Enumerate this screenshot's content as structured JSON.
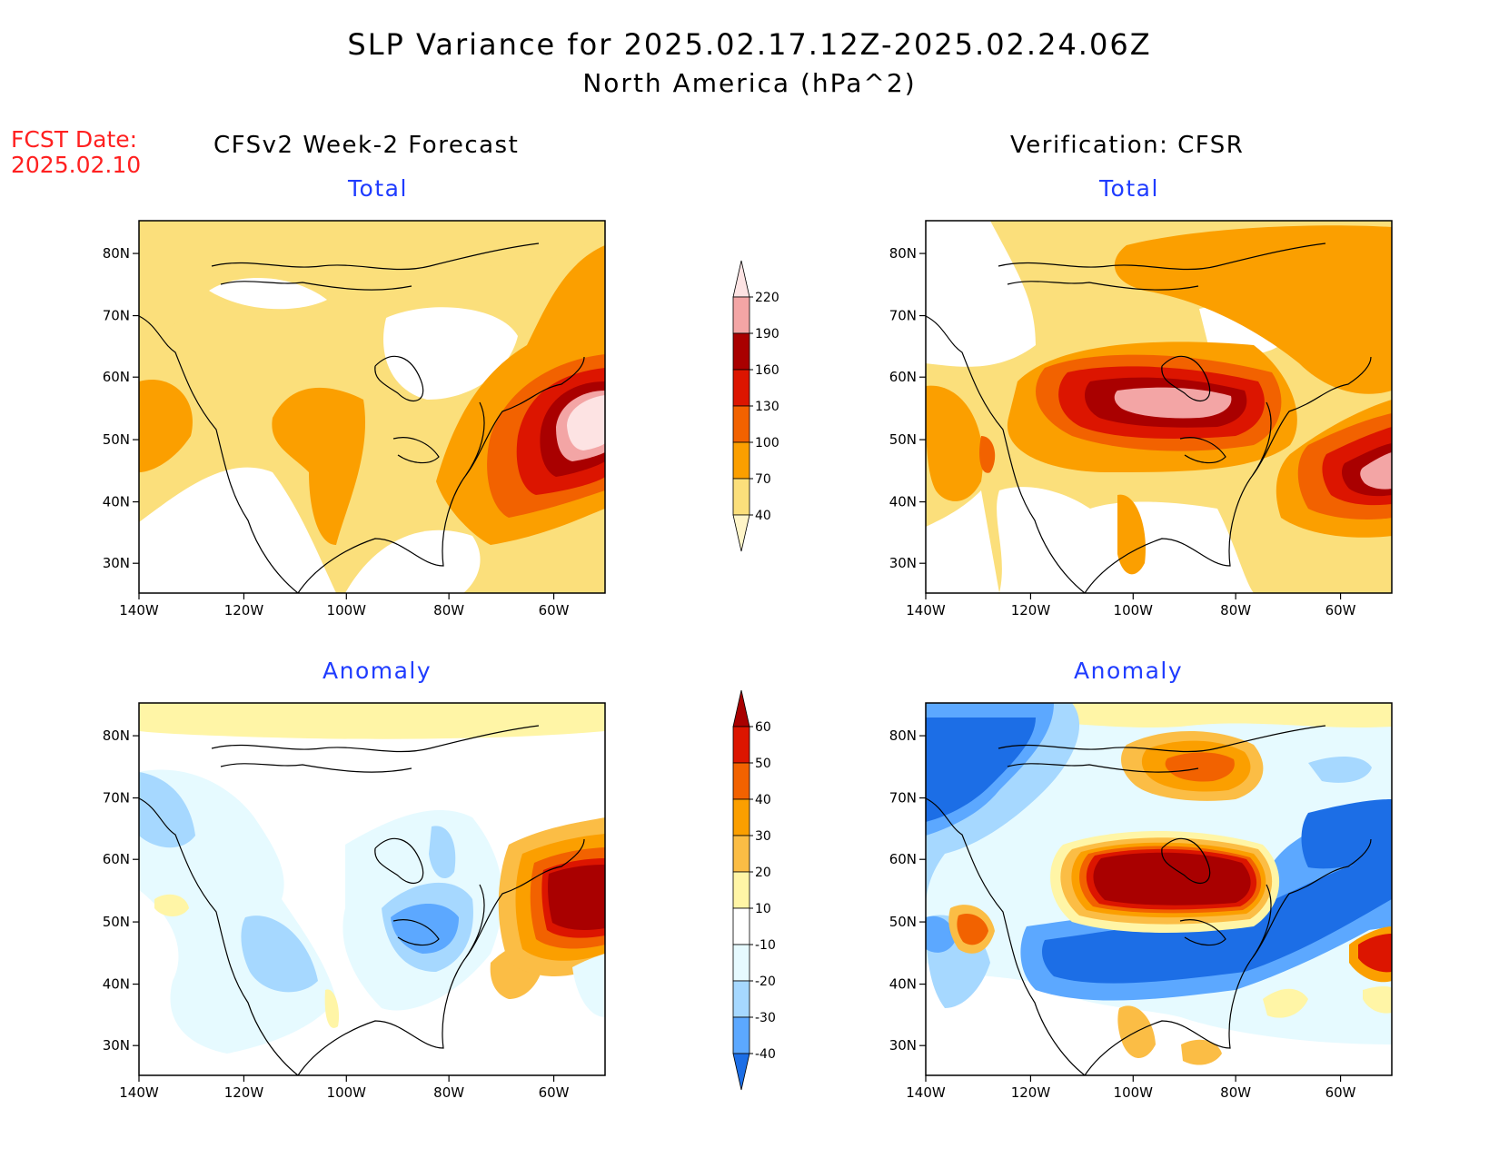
{
  "title": "SLP Variance for 2025.02.17.12Z-2025.02.24.06Z",
  "subtitle": "North America (hPa^2)",
  "fcst_date_label": "FCST Date:",
  "fcst_date": "2025.02.10",
  "left_column_title": "CFSv2 Week-2 Forecast",
  "right_column_title": "Verification: CFSR",
  "panels": [
    {
      "title": "Total"
    },
    {
      "title": "Total"
    },
    {
      "title": "Anomaly"
    },
    {
      "title": "Anomaly"
    }
  ],
  "lat_labels": [
    "80N",
    "70N",
    "60N",
    "50N",
    "40N",
    "30N"
  ],
  "lon_labels": [
    "140W",
    "120W",
    "100W",
    "80W",
    "60W"
  ],
  "colorbar_total": {
    "levels": [
      "40",
      "70",
      "100",
      "130",
      "160",
      "190",
      "220"
    ],
    "colors": [
      "#fff5c8",
      "#fbdf7b",
      "#fb9f00",
      "#f26200",
      "#dc1500",
      "#a90000",
      "#f3a5a5",
      "#fde3e3"
    ]
  },
  "colorbar_anomaly": {
    "levels": [
      "60",
      "50",
      "40",
      "30",
      "20",
      "10",
      "-10",
      "-20",
      "-30",
      "-40"
    ],
    "colors": [
      "#a90000",
      "#dc1500",
      "#f26200",
      "#fb9f00",
      "#fbbd45",
      "#fff5a6",
      "#ffffff",
      "#e6faff",
      "#a6d8ff",
      "#5ca8ff",
      "#1c6ee6"
    ]
  },
  "colors": {
    "fcst_date": "#ff2020",
    "panel_title": "#1f3cff"
  }
}
